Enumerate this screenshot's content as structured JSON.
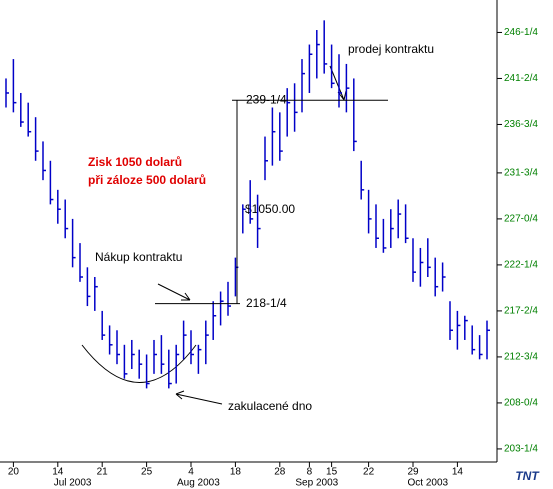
{
  "chart_data": {
    "type": "ohlc",
    "color": "#0000c8",
    "axis_color": "#008000",
    "high": [
      241.5,
      243.5,
      240,
      239,
      237.5,
      235,
      233,
      230,
      229,
      227,
      224.5,
      222,
      221,
      217.5,
      216,
      215.5,
      214,
      214.5,
      213.5,
      213,
      214.5,
      215,
      213.5,
      214,
      216.5,
      215.5,
      214,
      216.5,
      218.5,
      219.5,
      220.5,
      223,
      228.5,
      231,
      229.5,
      235.5,
      238.5,
      238,
      240.5,
      241,
      243.5,
      245,
      246.5,
      247.5,
      245,
      244,
      243,
      241.5,
      233,
      230,
      228.5,
      227,
      228,
      229,
      228.5,
      225,
      224,
      225,
      223,
      222.5,
      218.5,
      217.5,
      217,
      216,
      215,
      216.5
    ],
    "low": [
      238.5,
      238,
      236.5,
      235.5,
      233,
      231,
      228.5,
      226.5,
      225,
      222,
      220.5,
      218,
      217.5,
      214.5,
      213,
      212,
      210.5,
      211.5,
      210.5,
      209.5,
      211,
      211,
      209.5,
      210,
      212.5,
      212,
      211,
      212,
      214.5,
      216,
      217,
      219,
      225.5,
      226.5,
      224,
      231,
      232.5,
      233,
      235.5,
      236,
      238,
      240,
      241.5,
      242,
      240.5,
      238.5,
      238,
      234,
      229,
      225.5,
      224,
      223.5,
      224,
      225,
      224.5,
      220.5,
      220,
      221,
      219,
      219.5,
      214.5,
      213.5,
      214.5,
      213,
      212.5,
      212.5
    ],
    "close": [
      240,
      239,
      237,
      236,
      234,
      232,
      229,
      228,
      226,
      223,
      221,
      219,
      220,
      215,
      214,
      213,
      211,
      213,
      212,
      210,
      213,
      212,
      210,
      213,
      215,
      213,
      213.5,
      215,
      217,
      218.5,
      218,
      222,
      228,
      227,
      226,
      233,
      236,
      234,
      239,
      238,
      242,
      244,
      245,
      243,
      241,
      240,
      240.5,
      235,
      230,
      227,
      225,
      224,
      226,
      227.5,
      225,
      221.5,
      222.5,
      222,
      220,
      221,
      215.5,
      216,
      216.5,
      213.5,
      213,
      215.5
    ],
    "ylim": [
      201.9,
      249.6
    ],
    "yticks": [
      {
        "value": 203.25,
        "label": "203-1/4"
      },
      {
        "value": 208,
        "label": "208-0/4"
      },
      {
        "value": 212.75,
        "label": "212-3/4"
      },
      {
        "value": 217.5,
        "label": "217-2/4"
      },
      {
        "value": 222.25,
        "label": "222-1/4"
      },
      {
        "value": 227,
        "label": "227-0/4"
      },
      {
        "value": 231.75,
        "label": "231-3/4"
      },
      {
        "value": 236.75,
        "label": "236-3/4"
      },
      {
        "value": 241.5,
        "label": "241-2/4"
      },
      {
        "value": 246.25,
        "label": "246-1/4"
      }
    ],
    "xticks": [
      {
        "value": 1,
        "label": "20"
      },
      {
        "value": 7,
        "label": "14"
      },
      {
        "value": 13,
        "label": "21"
      },
      {
        "value": 19,
        "label": "25"
      },
      {
        "value": 25,
        "label": "4"
      },
      {
        "value": 31,
        "label": "18"
      },
      {
        "value": 37,
        "label": "28"
      },
      {
        "value": 41,
        "label": "8"
      },
      {
        "value": 44,
        "label": "15"
      },
      {
        "value": 49,
        "label": "22"
      },
      {
        "value": 55,
        "label": "29"
      },
      {
        "value": 61,
        "label": "14"
      }
    ],
    "months": [
      {
        "value": 9,
        "label": "Jul 2003"
      },
      {
        "value": 26,
        "label": "Aug 2003"
      },
      {
        "value": 42,
        "label": "Sep 2003"
      },
      {
        "value": 57,
        "label": "Oct 2003"
      }
    ],
    "levels": [
      {
        "value": 239.25,
        "label": "239-1/4"
      },
      {
        "value": 218.25,
        "label": "218-1/4"
      }
    ],
    "profit_label": "$1050.00",
    "note_lines": [
      "Zisk 1050 dolarů",
      "při záloze 500 dolarů"
    ],
    "buy_label": "Nákup kontraktu",
    "sell_label": "prodej kontraktu",
    "bottom_label": "zakulacené dno",
    "logo": "TNT"
  }
}
